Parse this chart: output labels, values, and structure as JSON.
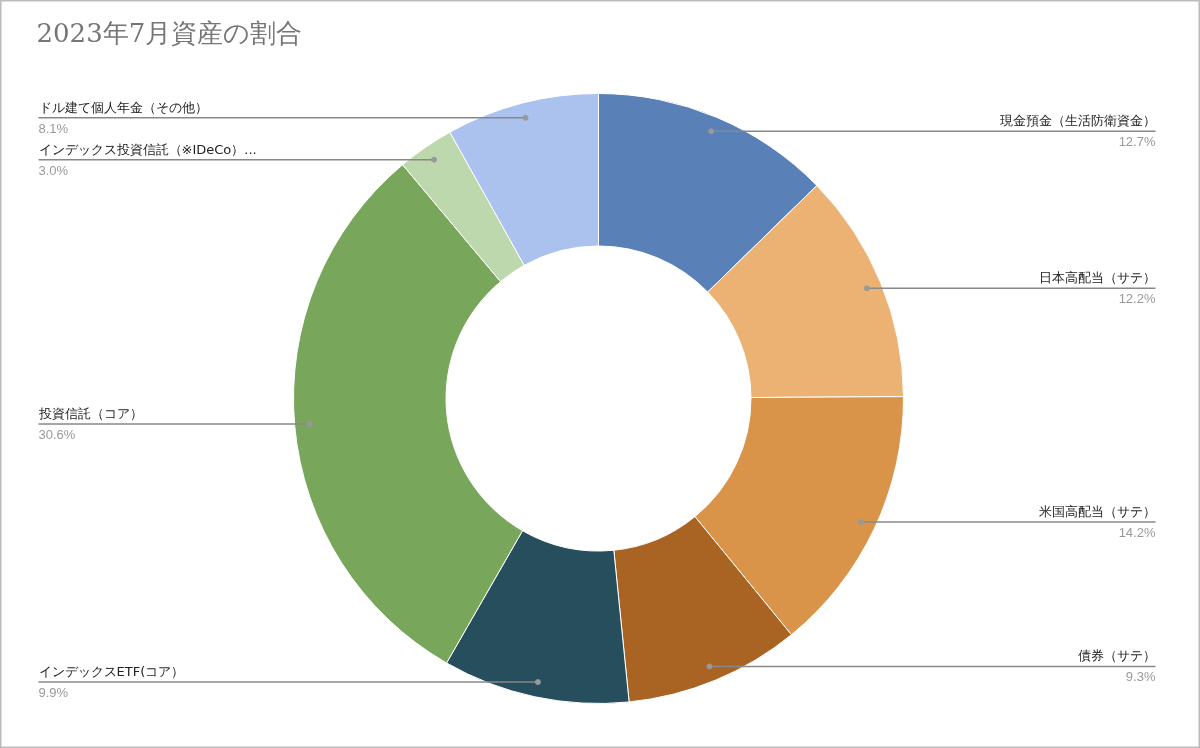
{
  "chart_data": {
    "type": "donut",
    "title": "2023年7月資産の割合",
    "categories": [
      "現金預金（生活防衛資金）",
      "日本高配当（サテ）",
      "米国高配当（サテ）",
      "債券（サテ）",
      "インデックスETF(コア）",
      "投資信託（コア）",
      "インデックス投資信託（※IDeCo）...",
      "ドル建て個人年金（その他）"
    ],
    "values": [
      12.7,
      12.2,
      14.2,
      9.3,
      9.9,
      30.6,
      3.0,
      8.1
    ],
    "value_labels": [
      "12.7%",
      "12.2%",
      "14.2%",
      "9.3%",
      "9.9%",
      "30.6%",
      "3.0%",
      "8.1%"
    ],
    "colors": [
      "#5a80b8",
      "#ebb274",
      "#d9944a",
      "#a96424",
      "#264e5c",
      "#78a65a",
      "#bdd8ac",
      "#abc2ef"
    ]
  }
}
